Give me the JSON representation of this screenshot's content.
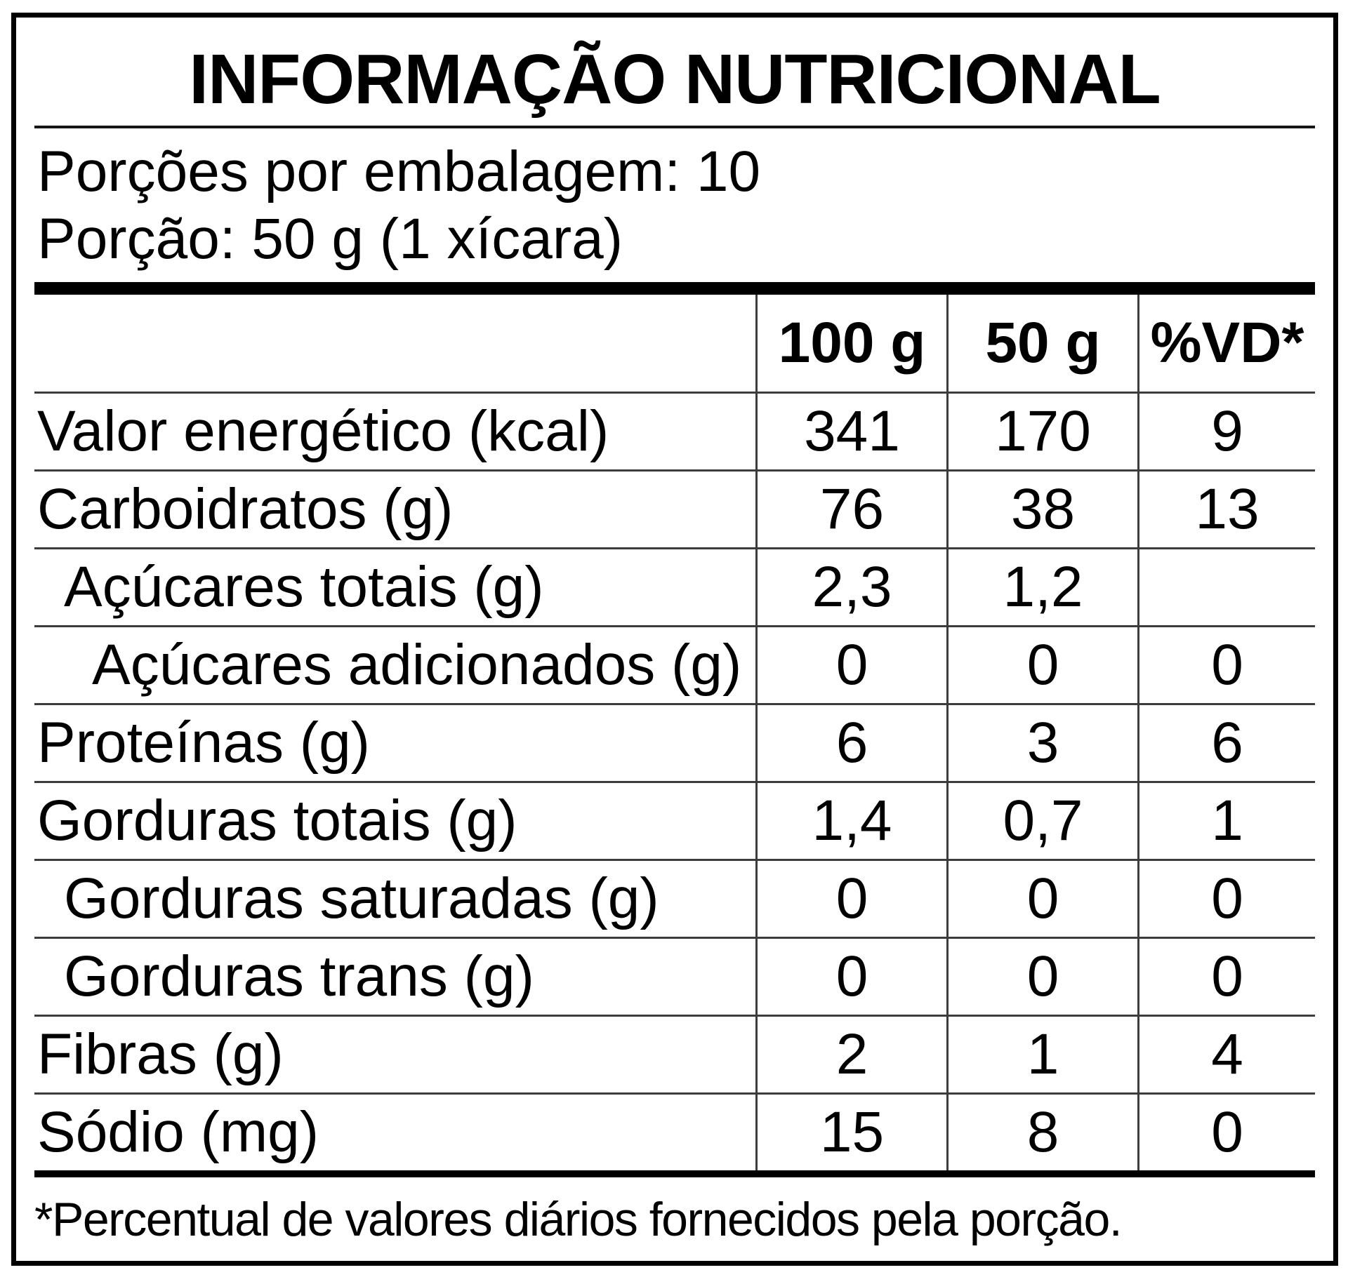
{
  "title": "INFORMAÇÃO NUTRICIONAL",
  "serving_info": {
    "servings_per_package": "Porções por embalagem: 10",
    "serving_size": "Porção: 50 g (1 xícara)"
  },
  "table": {
    "columns": [
      "100 g",
      "50 g",
      "%VD*"
    ],
    "rows": [
      {
        "label": "Valor energético (kcal)",
        "indent": 0,
        "per_100g": "341",
        "per_50g": "170",
        "pct_vd": "9"
      },
      {
        "label": "Carboidratos (g)",
        "indent": 0,
        "per_100g": "76",
        "per_50g": "38",
        "pct_vd": "13"
      },
      {
        "label": "Açúcares totais (g)",
        "indent": 1,
        "per_100g": "2,3",
        "per_50g": "1,2",
        "pct_vd": ""
      },
      {
        "label": "Açúcares adicionados (g)",
        "indent": 2,
        "per_100g": "0",
        "per_50g": "0",
        "pct_vd": "0"
      },
      {
        "label": "Proteínas (g)",
        "indent": 0,
        "per_100g": "6",
        "per_50g": "3",
        "pct_vd": "6"
      },
      {
        "label": "Gorduras totais (g)",
        "indent": 0,
        "per_100g": "1,4",
        "per_50g": "0,7",
        "pct_vd": "1"
      },
      {
        "label": "Gorduras saturadas (g)",
        "indent": 1,
        "per_100g": "0",
        "per_50g": "0",
        "pct_vd": "0"
      },
      {
        "label": "Gorduras trans (g)",
        "indent": 1,
        "per_100g": "0",
        "per_50g": "0",
        "pct_vd": "0"
      },
      {
        "label": "Fibras (g)",
        "indent": 0,
        "per_100g": "2",
        "per_50g": "1",
        "pct_vd": "4"
      },
      {
        "label": "Sódio (mg)",
        "indent": 0,
        "per_100g": "15",
        "per_50g": "8",
        "pct_vd": "0"
      }
    ]
  },
  "footnote": "*Percentual de valores diários fornecidos pela porção.",
  "colors": {
    "background": "#ffffff",
    "text": "#000000",
    "outer_border": "#000000",
    "grid_line": "#3c3c3c",
    "thick_bar": "#000000"
  }
}
